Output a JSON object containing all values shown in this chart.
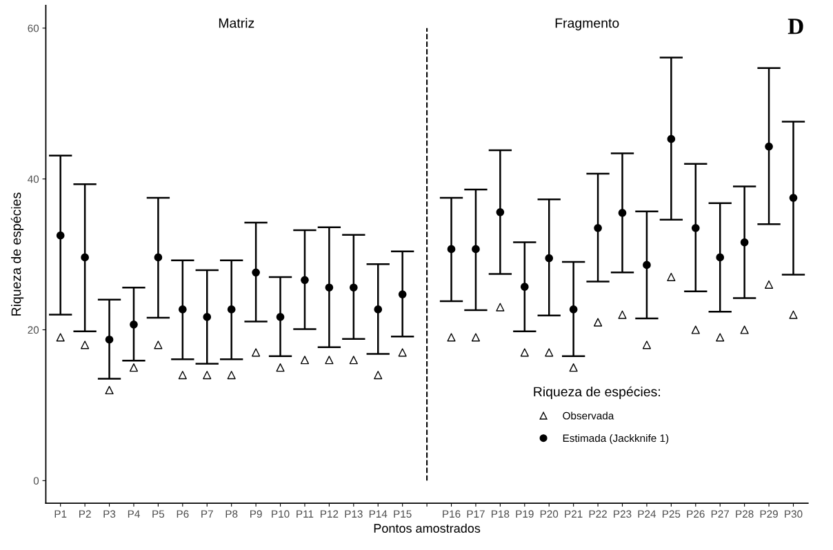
{
  "chart_data": {
    "type": "scatter",
    "xlabel": "Pontos amostrados",
    "ylabel": "Riqueza de espécies",
    "legend_title": "Riqueza de espécies:",
    "categories": [
      "P1",
      "P2",
      "P3",
      "P4",
      "P5",
      "P6",
      "P7",
      "P8",
      "P9",
      "P10",
      "P11",
      "P12",
      "P13",
      "P14",
      "P15",
      null,
      "P16",
      "P17",
      "P18",
      "P19",
      "P20",
      "P21",
      "P22",
      "P23",
      "P24",
      "P25",
      "P26",
      "P27",
      "P28",
      "P29",
      "P30"
    ],
    "series": [
      {
        "name": "Observada",
        "color": "#000000",
        "marker": "triangle",
        "values": [
          19,
          18,
          12,
          15,
          18,
          14,
          14,
          14,
          17,
          15,
          16,
          16,
          16,
          14,
          17,
          null,
          19,
          19,
          23,
          17,
          17,
          15,
          21,
          22,
          18,
          27,
          20,
          19,
          20,
          26,
          22
        ]
      },
      {
        "name": "Estimada (Jackknife 1)",
        "color": "#000000",
        "marker": "circle",
        "values": [
          32.5,
          29.6,
          18.7,
          20.7,
          29.6,
          22.7,
          21.7,
          22.7,
          27.6,
          21.7,
          26.6,
          25.6,
          25.6,
          22.7,
          24.7,
          null,
          30.7,
          30.7,
          35.6,
          25.7,
          29.5,
          22.7,
          33.5,
          35.5,
          28.6,
          45.3,
          33.5,
          29.6,
          31.6,
          44.3,
          37.5
        ],
        "errors": [
          [
            22,
            43.1
          ],
          [
            19.8,
            39.3
          ],
          [
            13.5,
            24.0
          ],
          [
            15.9,
            25.6
          ],
          [
            21.6,
            37.5
          ],
          [
            16.1,
            29.2
          ],
          [
            15.5,
            27.9
          ],
          [
            16.1,
            29.2
          ],
          [
            21.1,
            34.2
          ],
          [
            16.5,
            27.0
          ],
          [
            20.1,
            33.2
          ],
          [
            17.7,
            33.6
          ],
          [
            18.8,
            32.6
          ],
          [
            16.8,
            28.7
          ],
          [
            19.1,
            30.4
          ],
          null,
          [
            23.8,
            37.5
          ],
          [
            22.6,
            38.6
          ],
          [
            27.4,
            43.8
          ],
          [
            19.8,
            31.6
          ],
          [
            21.9,
            37.3
          ],
          [
            16.5,
            29.0
          ],
          [
            26.4,
            40.7
          ],
          [
            27.6,
            43.4
          ],
          [
            21.5,
            35.7
          ],
          [
            34.6,
            56.1
          ],
          [
            25.1,
            42.0
          ],
          [
            22.4,
            36.8
          ],
          [
            24.2,
            39.0
          ],
          [
            34.0,
            54.7
          ],
          [
            27.3,
            47.6
          ]
        ]
      }
    ],
    "ylim": [
      -3,
      63
    ],
    "yticks": [
      0,
      20,
      40,
      60
    ],
    "legend": "bottom right",
    "annotations": [
      "Matriz",
      "Fragmento",
      "D"
    ]
  }
}
